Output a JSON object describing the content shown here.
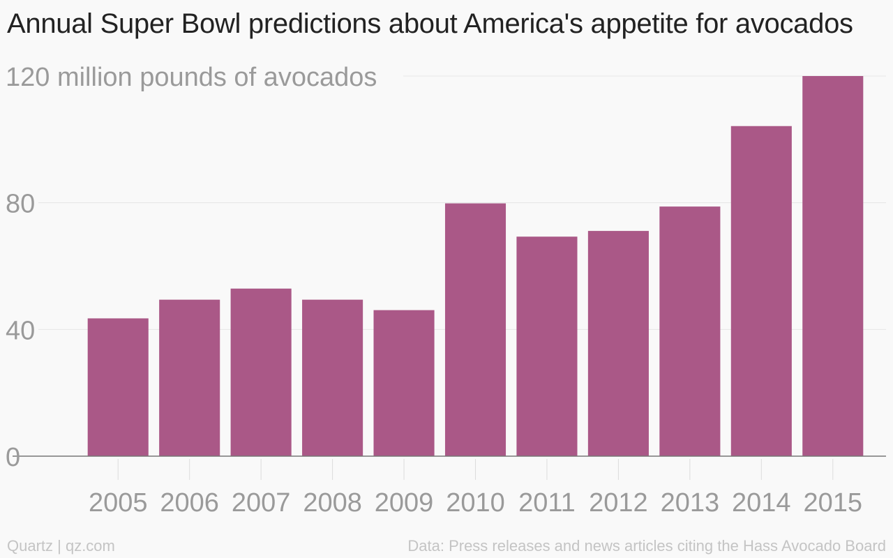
{
  "title": "Annual Super Bowl predictions about America's appetite for avocados",
  "chart_data": {
    "type": "bar",
    "categories": [
      "2005",
      "2006",
      "2007",
      "2008",
      "2009",
      "2010",
      "2011",
      "2012",
      "2013",
      "2014",
      "2015"
    ],
    "values": [
      43.5,
      49.4,
      52.9,
      49.4,
      46.1,
      79.8,
      69.3,
      71.1,
      78.8,
      104.2,
      120
    ],
    "ylabel": "120 million pounds of avocados",
    "ylim": [
      0,
      120
    ],
    "yticks": [
      {
        "value": 0,
        "label": "0"
      },
      {
        "value": 40,
        "label": "40"
      },
      {
        "value": 80,
        "label": "80"
      },
      {
        "value": 120,
        "label": "120 million pounds of avocados"
      }
    ],
    "grid": true,
    "legend": "none",
    "bar_color": "#aa5887"
  },
  "footer": {
    "credit": "Quartz | qz.com",
    "source": "Data: Press releases and news articles citing the Hass Avocado Board"
  },
  "colors": {
    "background": "#f9f9f9",
    "bar": "#aa5887",
    "grid": "#e6e6e6",
    "axis_text": "#9a9a9a",
    "footer_text": "#c4c4c4"
  }
}
